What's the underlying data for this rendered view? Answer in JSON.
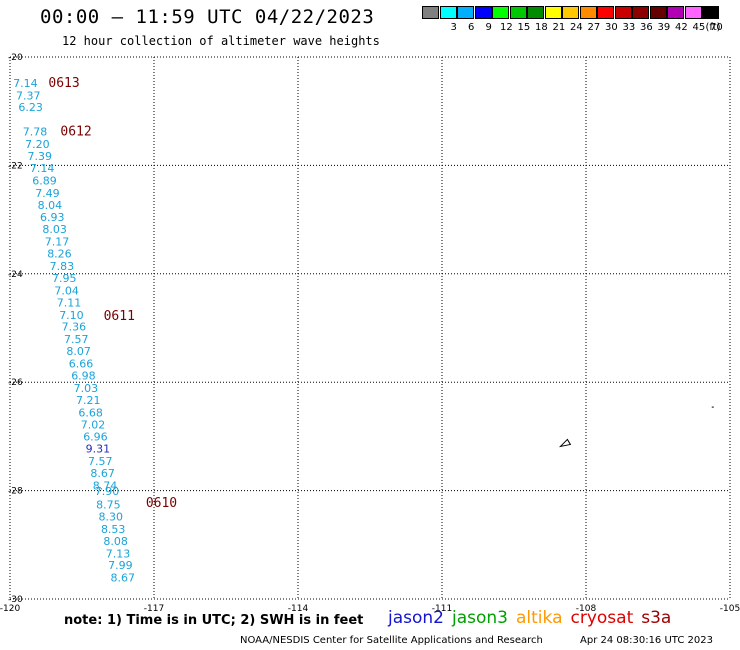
{
  "title": "00:00 – 11:59 UTC 04/22/2023",
  "subtitle": "12 hour collection of altimeter wave heights",
  "colorbar": {
    "unit": "(ft)",
    "swatches": [
      {
        "label": "",
        "color": "#808080"
      },
      {
        "label": "3",
        "color": "#00ffff"
      },
      {
        "label": "6",
        "color": "#00b0ff"
      },
      {
        "label": "9",
        "color": "#0000ff"
      },
      {
        "label": "12",
        "color": "#00ff00"
      },
      {
        "label": "15",
        "color": "#00c800"
      },
      {
        "label": "18",
        "color": "#008c00"
      },
      {
        "label": "21",
        "color": "#ffff00"
      },
      {
        "label": "24",
        "color": "#ffc800"
      },
      {
        "label": "27",
        "color": "#ff8c00"
      },
      {
        "label": "30",
        "color": "#ff0000"
      },
      {
        "label": "33",
        "color": "#c80000"
      },
      {
        "label": "36",
        "color": "#8c0000"
      },
      {
        "label": "39",
        "color": "#640000"
      },
      {
        "label": "42",
        "color": "#b400b4"
      },
      {
        "label": "45",
        "color": "#ff64ff"
      },
      {
        "label": "70",
        "color": "#000000"
      }
    ]
  },
  "map": {
    "lon_range": [
      -120,
      -105
    ],
    "lat_range": [
      -30,
      -20
    ],
    "lon_ticks": [
      "-120",
      "-117",
      "-114",
      "-111",
      "-108",
      "-105"
    ],
    "lat_ticks": [
      "-20",
      "-22",
      "-24",
      "-26",
      "-28",
      "-30"
    ],
    "grid": "dotted"
  },
  "wave_heights": [
    {
      "lon": -119.68,
      "lat": -20.55,
      "v": "7.14"
    },
    {
      "lon": -119.62,
      "lat": -20.78,
      "v": "7.37"
    },
    {
      "lon": -119.57,
      "lat": -21.0,
      "v": "6.23"
    },
    {
      "lon": -119.48,
      "lat": -21.45,
      "v": "7.78"
    },
    {
      "lon": -119.43,
      "lat": -21.68,
      "v": "7.20"
    },
    {
      "lon": -119.38,
      "lat": -21.9,
      "v": "7.39"
    },
    {
      "lon": -119.33,
      "lat": -22.12,
      "v": "7.14"
    },
    {
      "lon": -119.28,
      "lat": -22.35,
      "v": "6.89"
    },
    {
      "lon": -119.22,
      "lat": -22.58,
      "v": "7.49"
    },
    {
      "lon": -119.17,
      "lat": -22.8,
      "v": "8.04"
    },
    {
      "lon": -119.12,
      "lat": -23.03,
      "v": "6.93"
    },
    {
      "lon": -119.07,
      "lat": -23.25,
      "v": "8.03"
    },
    {
      "lon": -119.02,
      "lat": -23.48,
      "v": "7.17"
    },
    {
      "lon": -118.97,
      "lat": -23.7,
      "v": "8.26"
    },
    {
      "lon": -118.92,
      "lat": -23.93,
      "v": "7.83"
    },
    {
      "lon": -118.87,
      "lat": -24.15,
      "v": "7.95"
    },
    {
      "lon": -118.82,
      "lat": -24.38,
      "v": "7.04"
    },
    {
      "lon": -118.77,
      "lat": -24.6,
      "v": "7.11"
    },
    {
      "lon": -118.72,
      "lat": -24.83,
      "v": "7.10"
    },
    {
      "lon": -118.67,
      "lat": -25.05,
      "v": "7.36"
    },
    {
      "lon": -118.62,
      "lat": -25.28,
      "v": "7.57"
    },
    {
      "lon": -118.57,
      "lat": -25.5,
      "v": "8.07"
    },
    {
      "lon": -118.52,
      "lat": -25.73,
      "v": "6.66"
    },
    {
      "lon": -118.47,
      "lat": -25.95,
      "v": "6.98"
    },
    {
      "lon": -118.42,
      "lat": -26.18,
      "v": "7.03"
    },
    {
      "lon": -118.37,
      "lat": -26.4,
      "v": "7.21"
    },
    {
      "lon": -118.32,
      "lat": -26.63,
      "v": "6.68"
    },
    {
      "lon": -118.27,
      "lat": -26.85,
      "v": "7.02"
    },
    {
      "lon": -118.22,
      "lat": -27.08,
      "v": "6.96"
    },
    {
      "lon": -118.17,
      "lat": -27.3,
      "v": "9.31",
      "hi": true
    },
    {
      "lon": -118.12,
      "lat": -27.53,
      "v": "7.57"
    },
    {
      "lon": -118.07,
      "lat": -27.75,
      "v": "8.67"
    },
    {
      "lon": -118.02,
      "lat": -27.98,
      "v": "8.74"
    },
    {
      "lon": -117.98,
      "lat": -28.08,
      "v": "7.90"
    },
    {
      "lon": -117.95,
      "lat": -28.33,
      "v": "8.75"
    },
    {
      "lon": -117.9,
      "lat": -28.55,
      "v": "8.30"
    },
    {
      "lon": -117.85,
      "lat": -28.78,
      "v": "8.53"
    },
    {
      "lon": -117.8,
      "lat": -29.0,
      "v": "8.08"
    },
    {
      "lon": -117.75,
      "lat": -29.23,
      "v": "7.13"
    },
    {
      "lon": -117.7,
      "lat": -29.45,
      "v": "7.99"
    },
    {
      "lon": -117.65,
      "lat": -29.68,
      "v": "8.67"
    }
  ],
  "pass_labels": [
    {
      "lon": -119.2,
      "lat": -20.55,
      "v": "0613"
    },
    {
      "lon": -118.95,
      "lat": -21.45,
      "v": "0612"
    },
    {
      "lon": -118.05,
      "lat": -24.85,
      "v": "0611"
    },
    {
      "lon": -117.17,
      "lat": -28.3,
      "v": "0610"
    }
  ],
  "islands": [
    {
      "lon": -108.45,
      "lat": -27.13,
      "name": "island-easter"
    },
    {
      "lon": -105.38,
      "lat": -26.45,
      "name": "island-sala-y-gomez"
    }
  ],
  "note": "note:  1) Time is in UTC;  2) SWH is in feet",
  "legend": [
    {
      "label": "jason2",
      "color": "#1414d2"
    },
    {
      "label": "jason3",
      "color": "#00a000"
    },
    {
      "label": "altika",
      "color": "#ff9900"
    },
    {
      "label": "cryosat",
      "color": "#e00000"
    },
    {
      "label": "s3a",
      "color": "#a00000"
    }
  ],
  "credit": "NOAA/NESDIS Center for Satellite Applications and Research",
  "timestamp": "Apr 24 08:30:16 UTC 2023"
}
